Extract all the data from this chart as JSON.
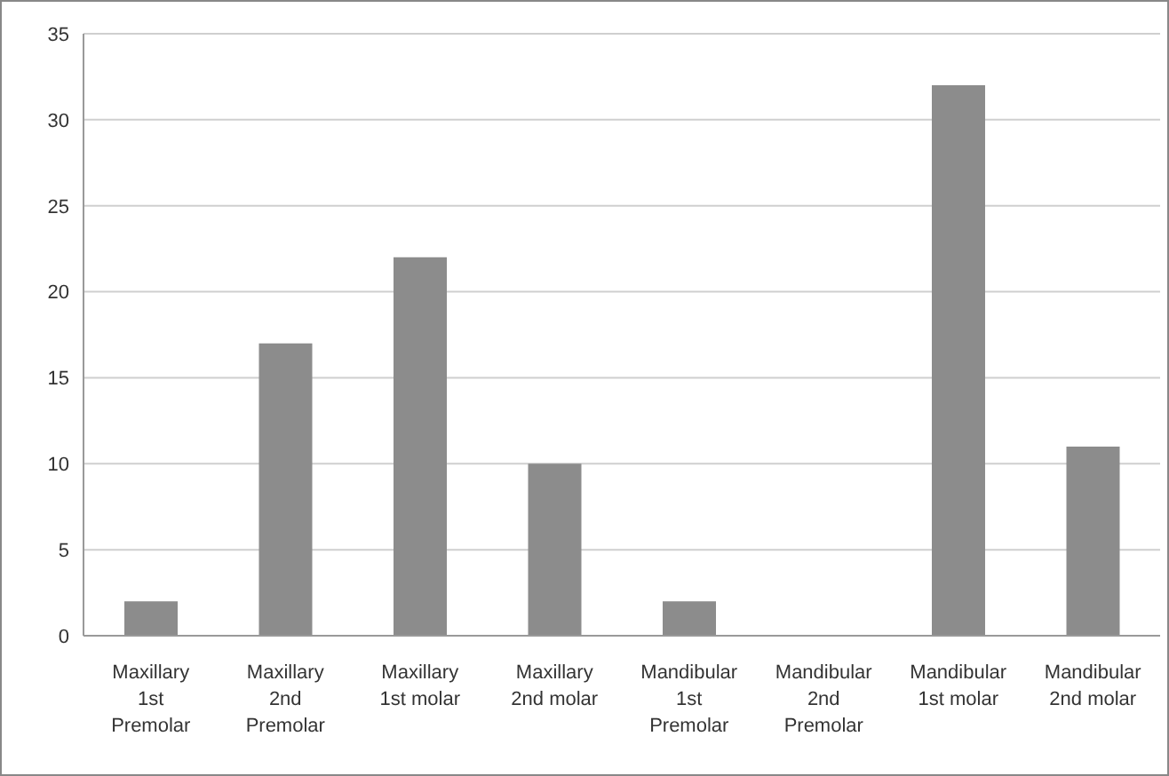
{
  "chart_data": {
    "type": "bar",
    "categories": [
      "Maxillary 1st Premolar",
      "Maxillary 2nd Premolar",
      "Maxillary 1st molar",
      "Maxillary 2nd molar",
      "Mandibular 1st Premolar",
      "Mandibular 2nd Premolar",
      "Mandibular 1st molar",
      "Mandibular 2nd molar"
    ],
    "values": [
      2,
      17,
      22,
      10,
      2,
      0,
      32,
      11
    ],
    "color": "#8c8c8c",
    "ylim": [
      0,
      35
    ],
    "yticks": [
      0,
      5,
      10,
      15,
      20,
      25,
      30,
      35
    ],
    "grid": "y"
  }
}
